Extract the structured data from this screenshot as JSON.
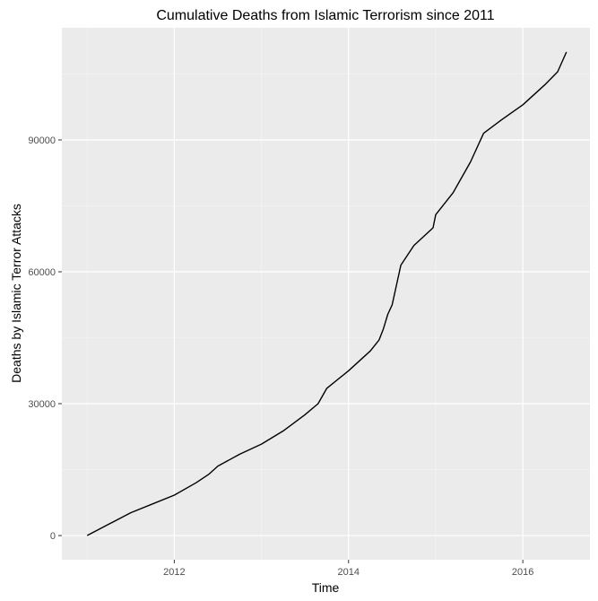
{
  "chart_data": {
    "type": "line",
    "title": "Cumulative Deaths from Islamic Terrorism since 2011",
    "xlabel": "Time",
    "ylabel": "Deaths by Islamic Terror Attacks",
    "xlim": [
      2010.71,
      2016.77
    ],
    "ylim": [
      -5500,
      115500
    ],
    "x_ticks": [
      2012,
      2014,
      2016
    ],
    "x_tick_labels": [
      "2012",
      "2014",
      "2016"
    ],
    "y_ticks": [
      0,
      30000,
      60000,
      90000
    ],
    "y_tick_labels": [
      "0",
      "30000",
      "60000",
      "90000"
    ],
    "grid": true,
    "legend": "none",
    "colors": {
      "panel": "#ebebeb",
      "grid_major": "#ffffff",
      "grid_minor": "#f5f5f5",
      "line": "#000000",
      "tick": "#333333"
    },
    "series": [
      {
        "x": [
          2011.0,
          2011.25,
          2011.5,
          2011.75,
          2012.0,
          2012.25,
          2012.4,
          2012.5,
          2012.75,
          2013.0,
          2013.25,
          2013.5,
          2013.65,
          2013.75,
          2014.0,
          2014.25,
          2014.35,
          2014.4,
          2014.45,
          2014.5,
          2014.6,
          2014.75,
          2014.97,
          2015.0,
          2015.2,
          2015.4,
          2015.55,
          2015.75,
          2016.0,
          2016.25,
          2016.4,
          2016.5
        ],
        "y": [
          0,
          2600,
          5200,
          7200,
          9200,
          12000,
          14000,
          15800,
          18500,
          20800,
          23800,
          27500,
          30000,
          33500,
          37500,
          42000,
          44500,
          47000,
          50300,
          52500,
          61500,
          66000,
          70000,
          73000,
          78000,
          85000,
          91500,
          94500,
          98000,
          102500,
          105500,
          110000
        ]
      }
    ]
  }
}
